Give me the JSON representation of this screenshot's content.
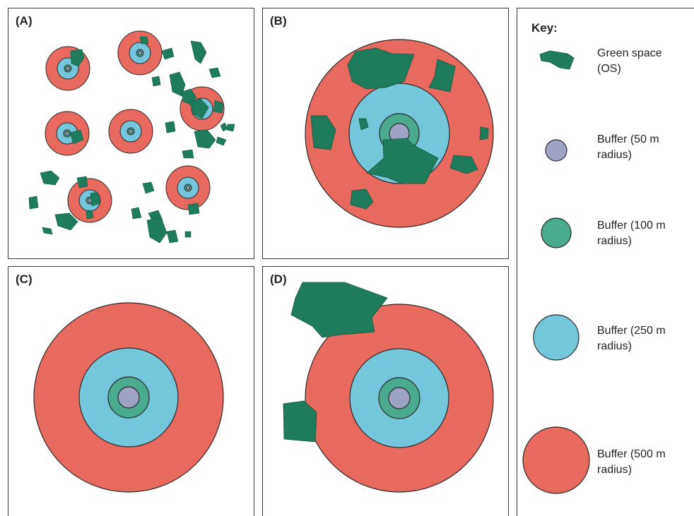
{
  "panels": {
    "a": {
      "label": "(A)"
    },
    "b": {
      "label": "(B)"
    },
    "c": {
      "label": "(C)"
    },
    "d": {
      "label": "(D)"
    }
  },
  "key": {
    "title": "Key:",
    "items": [
      {
        "label": "Green space\n(OS)",
        "icon": "green-space-polygon",
        "color": "#1e7c5c"
      },
      {
        "label": "Buffer (50 m\nradius)",
        "icon": "circle",
        "color": "#9ea3c4"
      },
      {
        "label": "Buffer (100 m\nradius)",
        "icon": "circle",
        "color": "#4aaa8e"
      },
      {
        "label": "Buffer (250 m\nradius)",
        "icon": "circle",
        "color": "#74c6da"
      },
      {
        "label": "Buffer (500 m\nradius)",
        "icon": "circle",
        "color": "#e8695e"
      }
    ]
  },
  "colors": {
    "green_space": "#1e7c5c",
    "buffer_50": "#9ea3c4",
    "buffer_100": "#4aaa8e",
    "buffer_250": "#74c6da",
    "buffer_500": "#e8695e",
    "outline": "#2a2a2a"
  }
}
